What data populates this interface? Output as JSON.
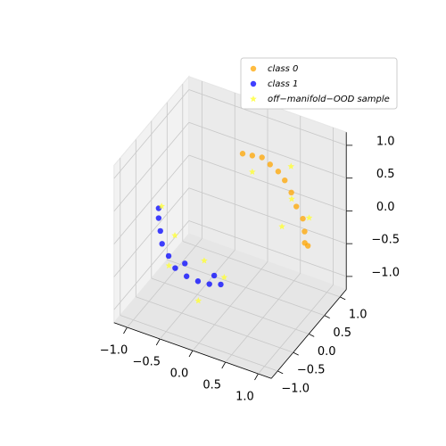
{
  "chart_data": {
    "type": "scatter3d",
    "xlim": [
      -1.2,
      1.2
    ],
    "ylim": [
      -1.2,
      1.2
    ],
    "zlim": [
      -1.2,
      1.2
    ],
    "xticks": [
      {
        "value": -1.0,
        "label": "−1.0"
      },
      {
        "value": -0.5,
        "label": "−0.5"
      },
      {
        "value": 0.0,
        "label": "0.0"
      },
      {
        "value": 0.5,
        "label": "0.5"
      },
      {
        "value": 1.0,
        "label": "1.0"
      }
    ],
    "yticks": [
      {
        "value": -1.0,
        "label": "−1.0"
      },
      {
        "value": -0.5,
        "label": "−0.5"
      },
      {
        "value": 0.0,
        "label": "0.0"
      },
      {
        "value": 0.5,
        "label": "0.5"
      },
      {
        "value": 1.0,
        "label": "1.0"
      }
    ],
    "zticks": [
      {
        "value": -1.0,
        "label": "−1.0"
      },
      {
        "value": -0.5,
        "label": "−0.5"
      },
      {
        "value": 0.0,
        "label": "0.0"
      },
      {
        "value": 0.5,
        "label": "0.5"
      },
      {
        "value": 1.0,
        "label": "1.0"
      }
    ],
    "grid": true,
    "legend": "upper right",
    "series": [
      {
        "name": "class 0",
        "color": "#ffa500",
        "marker": "circle",
        "x": [
          0.0,
          0.1,
          0.2,
          0.3,
          0.4,
          0.5,
          0.6,
          0.7,
          0.8,
          0.85,
          0.9,
          0.9
        ],
        "y": [
          0.4,
          0.5,
          0.6,
          0.65,
          0.7,
          0.7,
          0.7,
          0.65,
          0.65,
          0.6,
          0.6,
          0.5
        ],
        "z": [
          0.9,
          0.85,
          0.8,
          0.7,
          0.6,
          0.5,
          0.35,
          0.2,
          0.05,
          -0.1,
          -0.3,
          -0.2
        ]
      },
      {
        "name": "class 1",
        "color": "#0000ff",
        "marker": "circle",
        "x": [
          -0.9,
          -0.9,
          -0.85,
          -0.8,
          -0.7,
          -0.6,
          -0.45,
          -0.3,
          -0.15,
          0.0,
          -0.1,
          -0.5
        ],
        "y": [
          -0.4,
          -0.4,
          -0.45,
          -0.5,
          -0.5,
          -0.5,
          -0.45,
          -0.4,
          -0.35,
          -0.3,
          -0.3,
          -0.4
        ],
        "z": [
          0.2,
          0.05,
          -0.1,
          -0.25,
          -0.4,
          -0.55,
          -0.65,
          -0.7,
          -0.72,
          -0.7,
          -0.6,
          -0.5
        ]
      },
      {
        "name": "off−manifold−OOD sample",
        "color": "#ffff33",
        "marker": "star",
        "x": [
          0.1,
          0.5,
          0.7,
          0.8,
          0.6,
          -0.95,
          -0.6,
          -0.3,
          -0.2,
          0.1,
          -0.7
        ],
        "y": [
          0.5,
          0.9,
          0.5,
          0.85,
          0.4,
          -0.2,
          -0.7,
          -0.2,
          -0.6,
          -0.4,
          -0.3
        ],
        "z": [
          0.6,
          0.6,
          0.4,
          -0.05,
          0.0,
          0.1,
          -0.4,
          -0.5,
          -0.85,
          -0.5,
          -0.2
        ]
      }
    ]
  }
}
